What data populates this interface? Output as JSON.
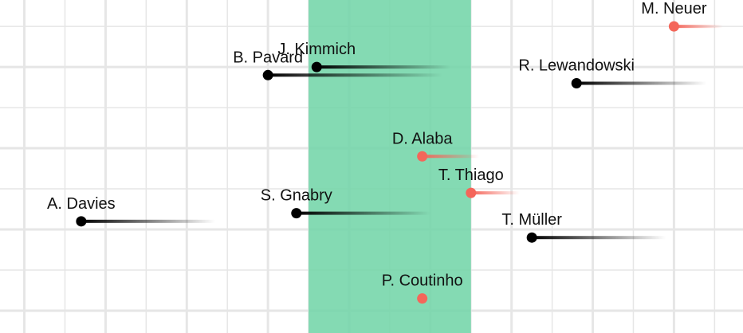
{
  "chart_data": {
    "type": "scatter",
    "title": "",
    "xlabel": "",
    "ylabel": "",
    "xlim": [
      -0.6,
      17.7
    ],
    "ylim": [
      -0.55,
      7.65
    ],
    "grid": true,
    "highlight_band": {
      "x0": 7,
      "x1": 11,
      "color": "#6fd3a6"
    },
    "colors": {
      "positive": "#000000",
      "negative": "#f4665a",
      "grid": "#e6e6e6"
    },
    "points": [
      {
        "name": "M. Neuer",
        "x": 16,
        "y": 7,
        "trail_to": 17.2,
        "group": "negative"
      },
      {
        "name": "J. Kimmich",
        "x": 7.2,
        "y": 6,
        "trail_to": 10.5,
        "group": "positive"
      },
      {
        "name": "B. Pavard",
        "x": 6,
        "y": 5.8,
        "trail_to": 10.3,
        "group": "positive"
      },
      {
        "name": "R. Lewandowski",
        "x": 13.6,
        "y": 5.6,
        "trail_to": 16.8,
        "group": "positive"
      },
      {
        "name": "D. Alaba",
        "x": 9.8,
        "y": 3.8,
        "trail_to": 11.2,
        "group": "negative"
      },
      {
        "name": "T. Thiago",
        "x": 11,
        "y": 2.9,
        "trail_to": 12.2,
        "group": "negative"
      },
      {
        "name": "S. Gnabry",
        "x": 6.7,
        "y": 2.4,
        "trail_to": 10,
        "group": "positive"
      },
      {
        "name": "A. Davies",
        "x": 1.4,
        "y": 2.2,
        "trail_to": 4.7,
        "group": "positive"
      },
      {
        "name": "T. Müller",
        "x": 12.5,
        "y": 1.8,
        "trail_to": 15.8,
        "group": "positive"
      },
      {
        "name": "P. Coutinho",
        "x": 9.8,
        "y": 0.3,
        "trail_to": 9.8,
        "group": "negative"
      }
    ]
  }
}
